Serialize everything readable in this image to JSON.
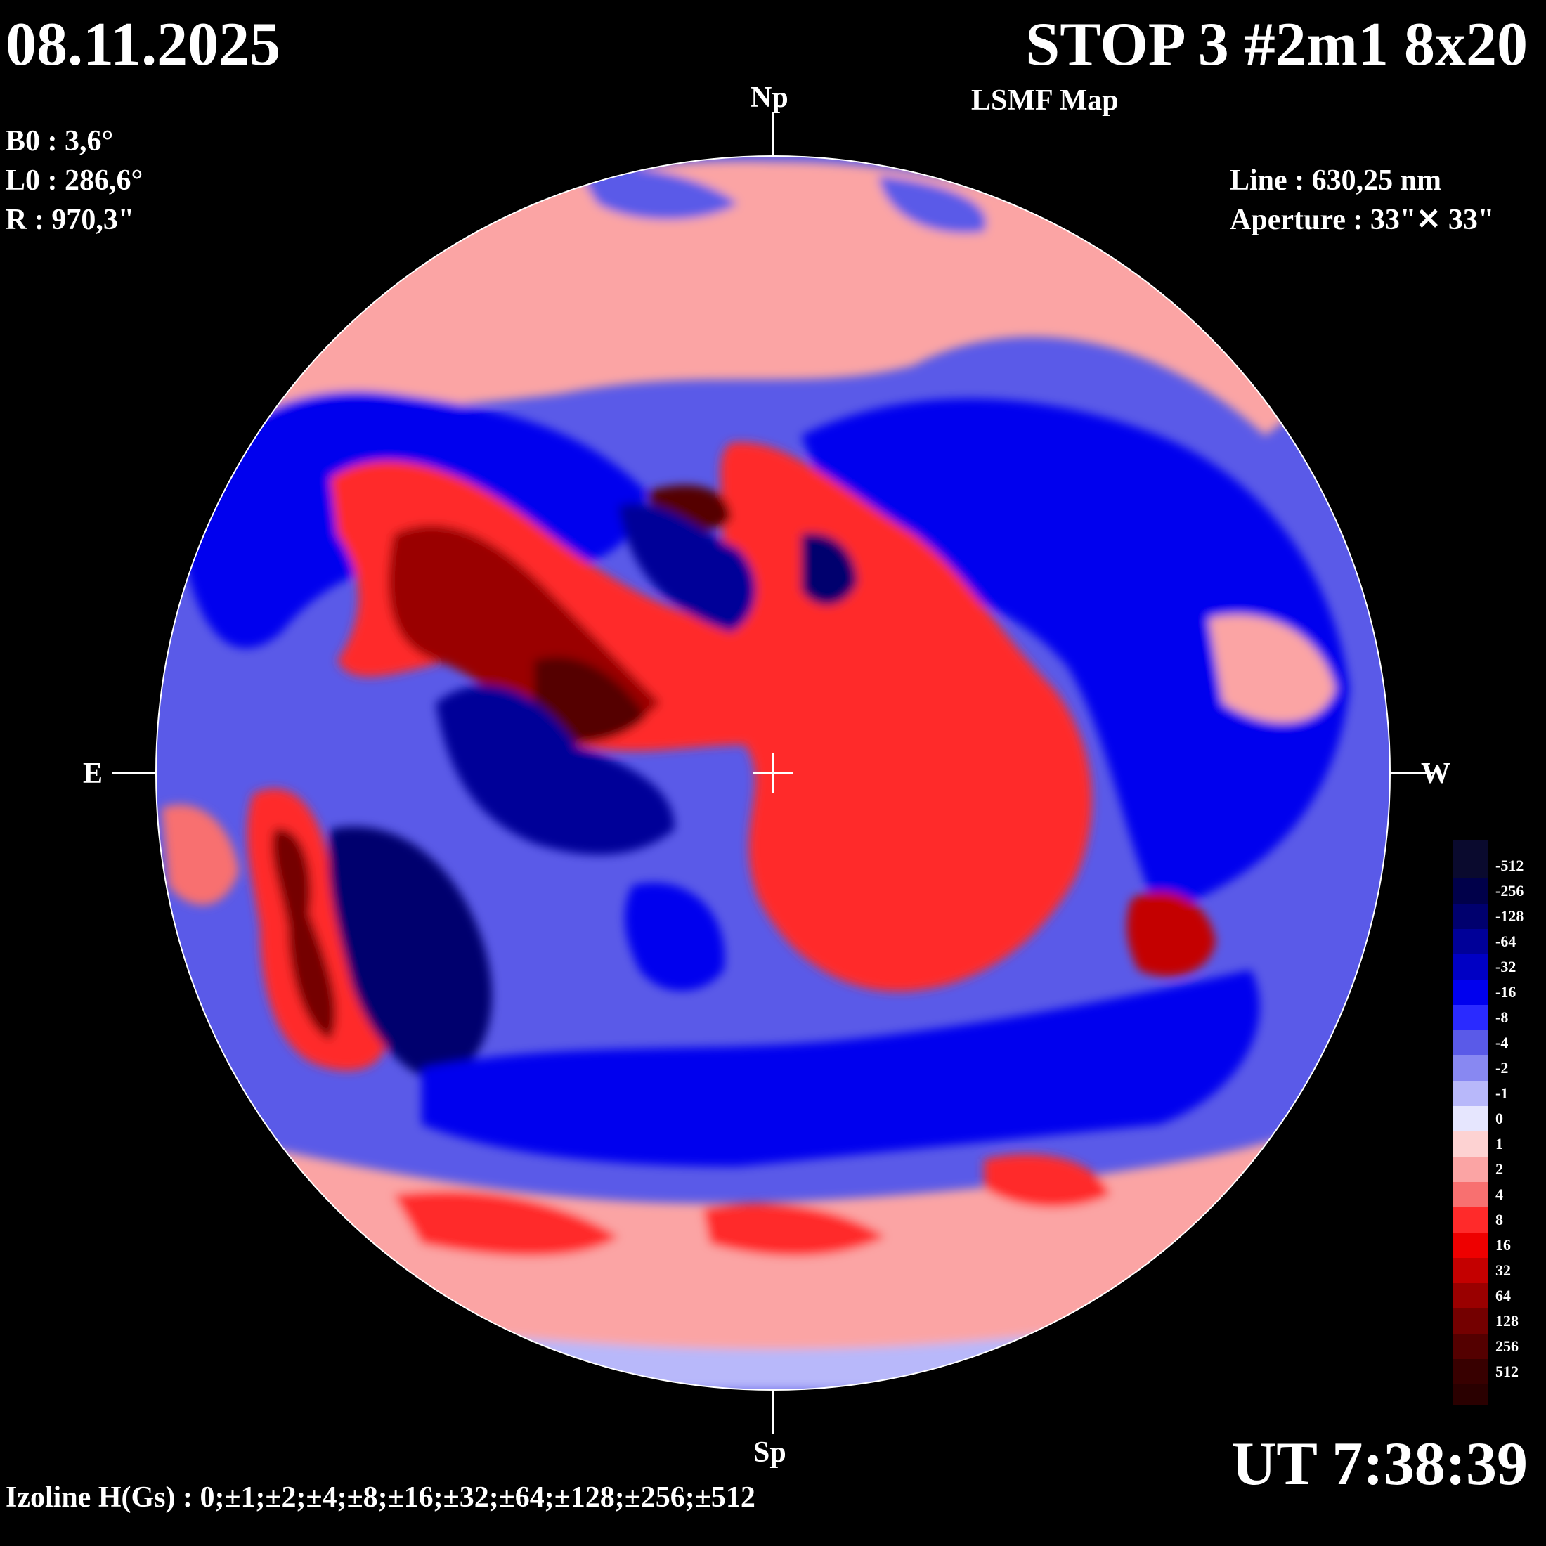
{
  "header": {
    "date": "08.11.2025",
    "title": "STOP 3 #2m1 8x20",
    "subtitle": "LSMF  Map"
  },
  "params": {
    "b0": "B0 : 3,6°",
    "l0": "L0 : 286,6°",
    "r": "R  : 970,3\"",
    "line": "Line :  630,25 nm",
    "aperture": "Aperture : 33\"✕ 33\""
  },
  "directions": {
    "north": "Np",
    "south": "Sp",
    "east": "E",
    "west": "W"
  },
  "footer": {
    "ut": "UT 7:38:39",
    "izoline": "Izoline H(Gs) : 0;±1;±2;±4;±8;±16;±32;±64;±128;±256;±512"
  },
  "legend": {
    "levels": [
      {
        "label": "-512",
        "color": "#0a0a2e"
      },
      {
        "label": "-256",
        "color": "#00004a"
      },
      {
        "label": "-128",
        "color": "#00006e"
      },
      {
        "label": "-64",
        "color": "#000098"
      },
      {
        "label": "-32",
        "color": "#0000c4"
      },
      {
        "label": "-16",
        "color": "#0000ee"
      },
      {
        "label": "-8",
        "color": "#2a2aff"
      },
      {
        "label": "-4",
        "color": "#5a5ae8"
      },
      {
        "label": "-2",
        "color": "#8888f2"
      },
      {
        "label": "-1",
        "color": "#b8b8fa"
      },
      {
        "label": "0",
        "color": "#e6e6fe"
      },
      {
        "label": "1",
        "color": "#fdd2d2"
      },
      {
        "label": "2",
        "color": "#fba4a4"
      },
      {
        "label": "4",
        "color": "#f87070"
      },
      {
        "label": "8",
        "color": "#ff2a2a"
      },
      {
        "label": "16",
        "color": "#ee0000"
      },
      {
        "label": "32",
        "color": "#c40000"
      },
      {
        "label": "64",
        "color": "#9a0000"
      },
      {
        "label": "128",
        "color": "#740000"
      },
      {
        "label": "256",
        "color": "#540000"
      },
      {
        "label": "512",
        "color": "#380000"
      }
    ]
  },
  "colors": {
    "background": "#000000",
    "text": "#ffffff",
    "blue": "#0000ee",
    "light_blue": "#8888f2",
    "red": "#ff2a2a",
    "light_red": "#fba4a4",
    "dark_red": "#740000",
    "dark_blue": "#00006e"
  }
}
